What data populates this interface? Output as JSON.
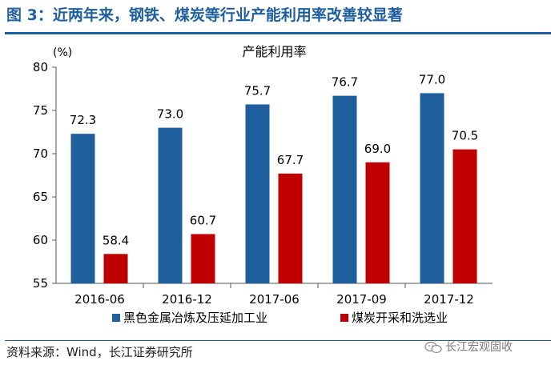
{
  "figure": {
    "title": "图 3：近两年来，钢铁、煤炭等行业产能利用率改善较显著",
    "source": "资料来源：Wind，长江证券研究所",
    "watermark": "长江宏观固收",
    "watermark_icon": "wechat-icon"
  },
  "colors": {
    "title": "#1f5f9e",
    "series_1": "#1f5f9e",
    "series_2": "#c00000",
    "axis": "#555555"
  },
  "chart_data": {
    "type": "bar",
    "title": "产能利用率",
    "unit_label": "(%)",
    "categories": [
      "2016-06",
      "2016-12",
      "2017-06",
      "2017-09",
      "2017-12"
    ],
    "series": [
      {
        "name": "黑色金属冶炼及压延加工业",
        "values": [
          72.3,
          73.0,
          75.7,
          76.7,
          77.0
        ],
        "labels": [
          "72.3",
          "73.0",
          "75.7",
          "76.7",
          "77.0"
        ]
      },
      {
        "name": "煤炭开采和洗选业",
        "values": [
          58.4,
          60.7,
          67.7,
          69.0,
          70.5
        ],
        "labels": [
          "58.4",
          "60.7",
          "67.7",
          "69.0",
          "70.5"
        ]
      }
    ],
    "ylim": [
      55,
      80
    ],
    "yticks": [
      "55",
      "60",
      "65",
      "70",
      "75",
      "80"
    ],
    "grid": false,
    "legend_position": "bottom"
  }
}
